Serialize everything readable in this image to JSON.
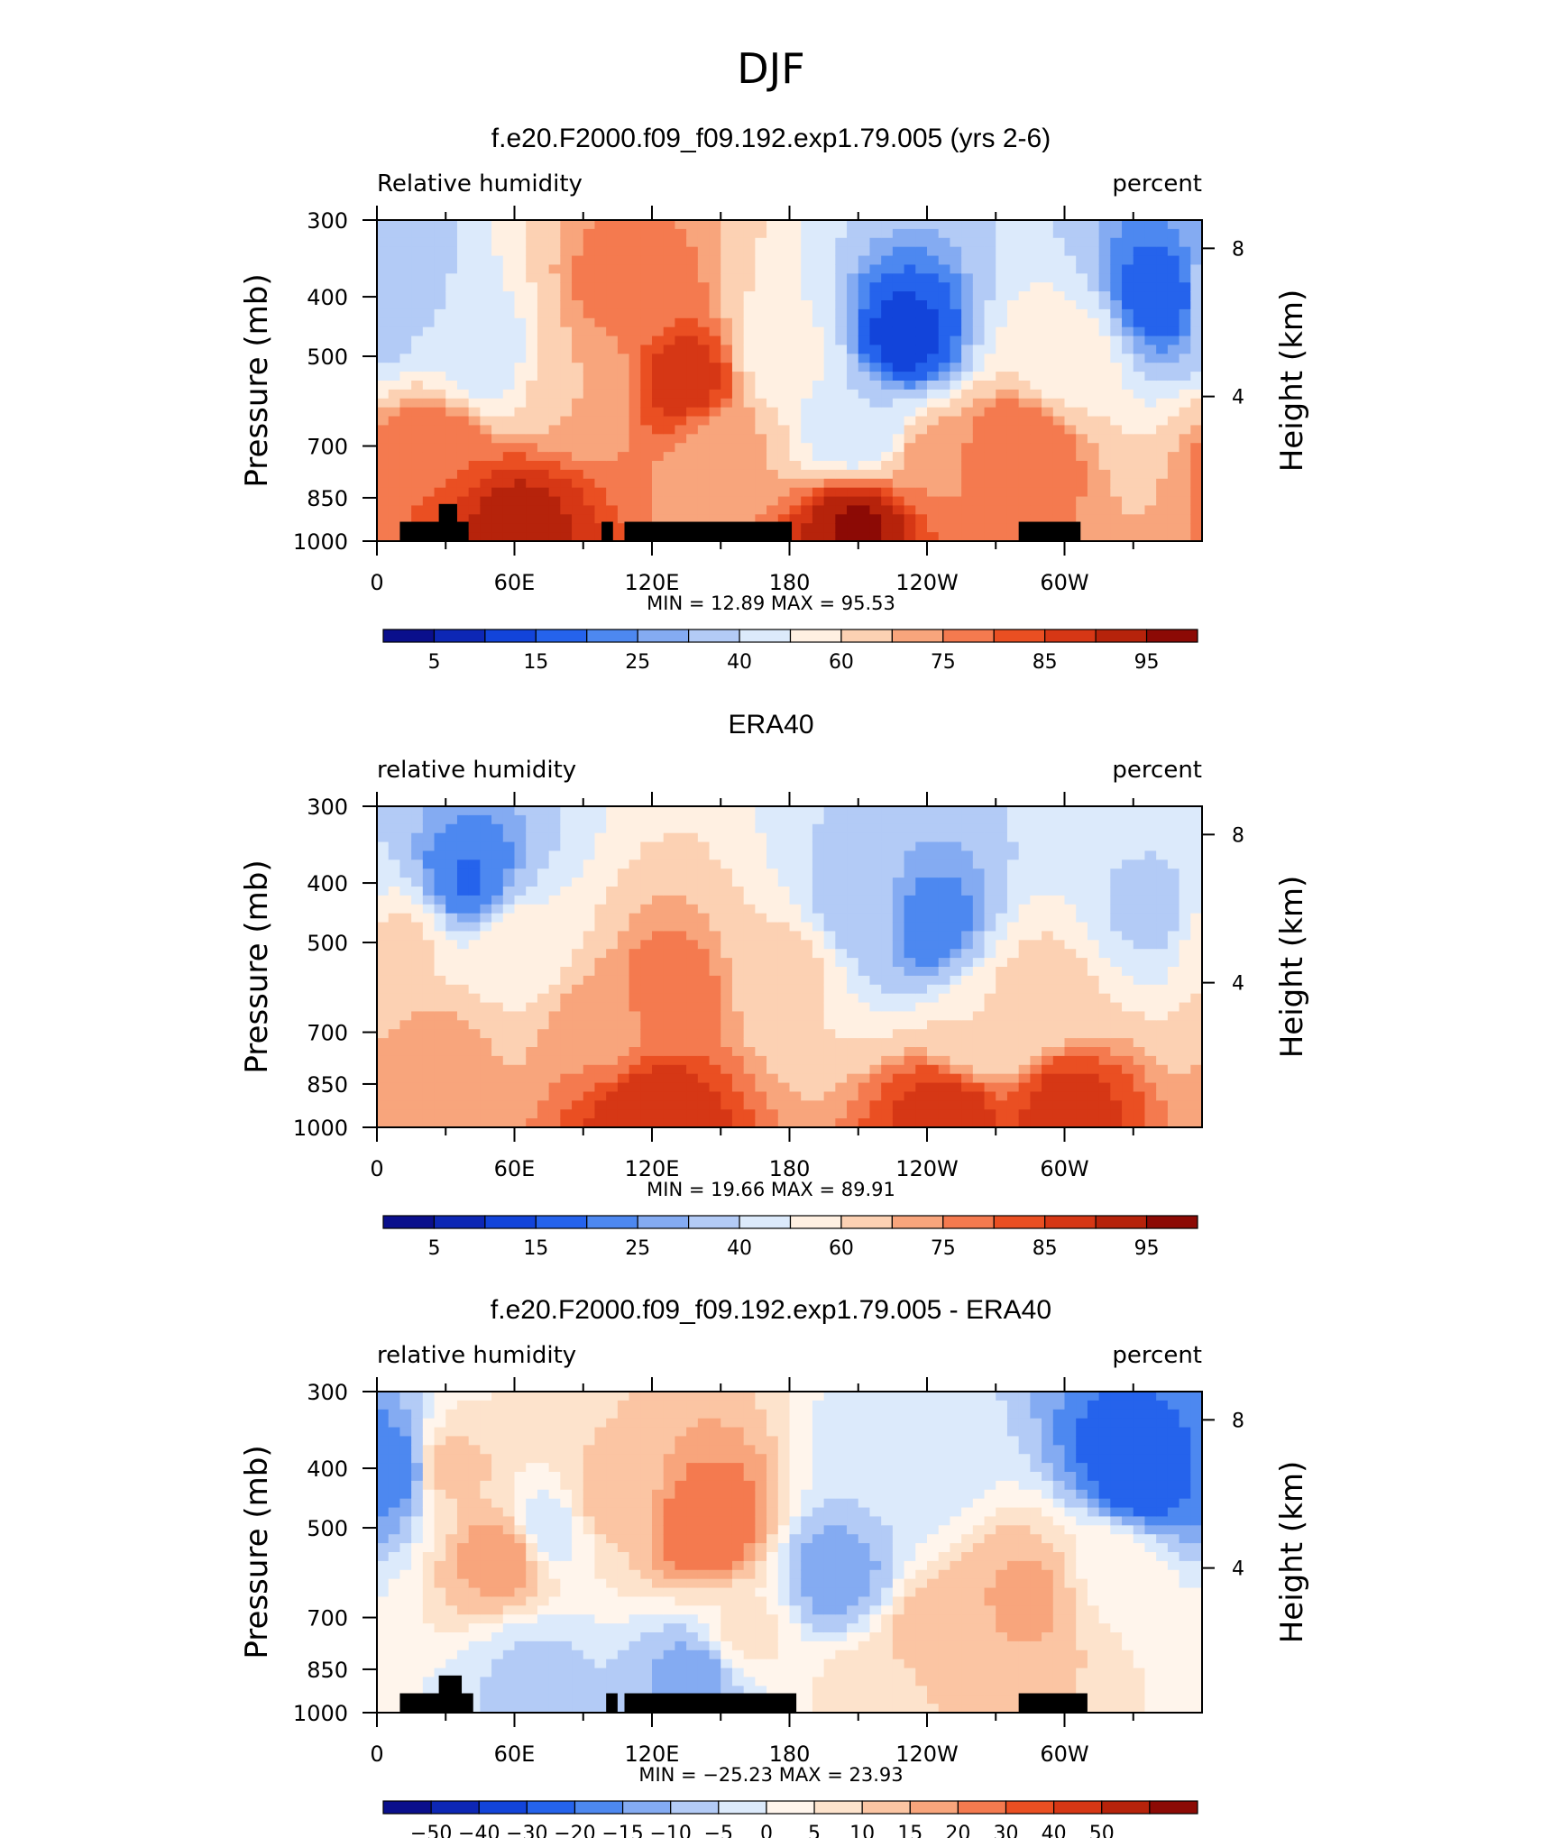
{
  "figure_title": "DJF",
  "colors": {
    "land_mask": "#000000",
    "rh_scale": [
      "#0a0f8c",
      "#0d27b5",
      "#1244da",
      "#2563ec",
      "#4d88f0",
      "#84abf2",
      "#b3cbf6",
      "#dceafb",
      "#fff0e2",
      "#fcd1b3",
      "#f8a57c",
      "#f47a4f",
      "#ea4f22",
      "#d63715",
      "#b6230b",
      "#8c0a05"
    ],
    "diff_scale": [
      "#0a0f8c",
      "#0d27b5",
      "#1244da",
      "#2563ec",
      "#4d88f0",
      "#84abf2",
      "#b3cbf6",
      "#dceafb",
      "#fff5ec",
      "#fde3cc",
      "#fbc5a3",
      "#f8a57c",
      "#f47a4f",
      "#ea4f22",
      "#d63715",
      "#b6230b",
      "#8c0a05"
    ]
  },
  "chart_data": [
    {
      "type": "heatmap",
      "panel_title": "f.e20.F2000.f09_f09.192.exp1.79.005 (yrs 2-6)",
      "variable_label": "Relative humidity",
      "units_label": "percent",
      "ylabel": "Pressure (mb)",
      "y2label": "Height (km)",
      "x_ticks": [
        "0",
        "60E",
        "120E",
        "180",
        "120W",
        "60W"
      ],
      "y_ticks": [
        "300",
        "400",
        "500",
        "700",
        "850",
        "1000"
      ],
      "y2_ticks": [
        "8",
        "4"
      ],
      "stats_text": "MIN =   12.89   MAX =   95.53",
      "min": 12.89,
      "max": 95.53,
      "colorbar_labels": [
        "5",
        "15",
        "25",
        "40",
        "60",
        "75",
        "85",
        "95"
      ],
      "levels": [
        5,
        10,
        15,
        20,
        25,
        30,
        40,
        50,
        60,
        70,
        75,
        80,
        85,
        90,
        95
      ],
      "land_mask": true,
      "field_regions": [
        {
          "lon": 5,
          "p": 400,
          "value": 38
        },
        {
          "lon": 25,
          "p": 700,
          "value": 80
        },
        {
          "lon": 45,
          "p": 500,
          "value": 45
        },
        {
          "lon": 90,
          "p": 550,
          "value": 70
        },
        {
          "lon": 110,
          "p": 400,
          "value": 78
        },
        {
          "lon": 135,
          "p": 550,
          "value": 88
        },
        {
          "lon": 150,
          "p": 700,
          "value": 72
        },
        {
          "lon": 180,
          "p": 500,
          "value": 52
        },
        {
          "lon": 230,
          "p": 470,
          "value": 12.89
        },
        {
          "lon": 210,
          "p": 650,
          "value": 40
        },
        {
          "lon": 245,
          "p": 750,
          "value": 75
        },
        {
          "lon": 280,
          "p": 700,
          "value": 80
        },
        {
          "lon": 300,
          "p": 500,
          "value": 55
        },
        {
          "lon": 345,
          "p": 400,
          "value": 15
        },
        {
          "lon": 210,
          "p": 950,
          "value": 95.53
        },
        {
          "lon": 60,
          "p": 950,
          "value": 92
        }
      ],
      "land_blocks": [
        {
          "lon0": 10,
          "lon1": 40,
          "p_top": 930
        },
        {
          "lon0": 27,
          "lon1": 35,
          "p_top": 870
        },
        {
          "lon0": 98,
          "lon1": 103,
          "p_top": 930
        },
        {
          "lon0": 108,
          "lon1": 181,
          "p_top": 930
        },
        {
          "lon0": 280,
          "lon1": 307,
          "p_top": 930
        }
      ]
    },
    {
      "type": "heatmap",
      "panel_title": "ERA40",
      "variable_label": "relative humidity",
      "units_label": "percent",
      "ylabel": "Pressure (mb)",
      "y2label": "Height (km)",
      "x_ticks": [
        "0",
        "60E",
        "120E",
        "180",
        "120W",
        "60W"
      ],
      "y_ticks": [
        "300",
        "400",
        "500",
        "700",
        "850",
        "1000"
      ],
      "y2_ticks": [
        "8",
        "4"
      ],
      "stats_text": "MIN =   19.66   MAX =   89.91",
      "min": 19.66,
      "max": 89.91,
      "colorbar_labels": [
        "5",
        "15",
        "25",
        "40",
        "60",
        "75",
        "85",
        "95"
      ],
      "levels": [
        5,
        10,
        15,
        20,
        25,
        30,
        40,
        50,
        60,
        70,
        75,
        80,
        85,
        90,
        95
      ],
      "land_mask": false,
      "field_regions": [
        {
          "lon": 10,
          "p": 500,
          "value": 62
        },
        {
          "lon": 25,
          "p": 750,
          "value": 72
        },
        {
          "lon": 40,
          "p": 400,
          "value": 19.66
        },
        {
          "lon": 60,
          "p": 500,
          "value": 55
        },
        {
          "lon": 100,
          "p": 700,
          "value": 74
        },
        {
          "lon": 130,
          "p": 600,
          "value": 77
        },
        {
          "lon": 180,
          "p": 550,
          "value": 63
        },
        {
          "lon": 210,
          "p": 450,
          "value": 35
        },
        {
          "lon": 240,
          "p": 470,
          "value": 22
        },
        {
          "lon": 265,
          "p": 700,
          "value": 60
        },
        {
          "lon": 290,
          "p": 600,
          "value": 63
        },
        {
          "lon": 340,
          "p": 450,
          "value": 38
        },
        {
          "lon": 120,
          "p": 950,
          "value": 89.91
        },
        {
          "lon": 250,
          "p": 950,
          "value": 88
        },
        {
          "lon": 300,
          "p": 930,
          "value": 87
        }
      ]
    },
    {
      "type": "heatmap",
      "panel_title": "f.e20.F2000.f09_f09.192.exp1.79.005 - ERA40",
      "variable_label": "relative humidity",
      "units_label": "percent",
      "ylabel": "Pressure (mb)",
      "y2label": "Height (km)",
      "x_ticks": [
        "0",
        "60E",
        "120E",
        "180",
        "120W",
        "60W"
      ],
      "y_ticks": [
        "300",
        "400",
        "500",
        "700",
        "850",
        "1000"
      ],
      "y2_ticks": [
        "8",
        "4"
      ],
      "stats_text": "MIN =  −25.23   MAX =   23.93",
      "min": -25.23,
      "max": 23.93,
      "colorbar_labels": [
        "−50",
        "−40",
        "−30",
        "−20",
        "−15",
        "−10",
        "−5",
        "0",
        "5",
        "10",
        "15",
        "20",
        "30",
        "40",
        "50"
      ],
      "levels": [
        -50,
        -40,
        -30,
        -20,
        -15,
        -10,
        -5,
        0,
        5,
        10,
        15,
        20,
        30,
        40,
        50
      ],
      "land_mask": true,
      "field_regions": [
        {
          "lon": 8,
          "p": 400,
          "value": -20
        },
        {
          "lon": 30,
          "p": 400,
          "value": 12
        },
        {
          "lon": 55,
          "p": 550,
          "value": 18
        },
        {
          "lon": 75,
          "p": 500,
          "value": -3
        },
        {
          "lon": 100,
          "p": 450,
          "value": 12
        },
        {
          "lon": 145,
          "p": 500,
          "value": 23.93
        },
        {
          "lon": 160,
          "p": 750,
          "value": 6
        },
        {
          "lon": 200,
          "p": 600,
          "value": -12
        },
        {
          "lon": 230,
          "p": 400,
          "value": -4
        },
        {
          "lon": 245,
          "p": 750,
          "value": 13
        },
        {
          "lon": 285,
          "p": 650,
          "value": 16
        },
        {
          "lon": 320,
          "p": 600,
          "value": 4
        },
        {
          "lon": 335,
          "p": 400,
          "value": -25.23
        },
        {
          "lon": 70,
          "p": 870,
          "value": -6
        },
        {
          "lon": 140,
          "p": 870,
          "value": -12
        },
        {
          "lon": 220,
          "p": 920,
          "value": 9
        }
      ],
      "land_blocks": [
        {
          "lon0": 10,
          "lon1": 42,
          "p_top": 930
        },
        {
          "lon0": 27,
          "lon1": 37,
          "p_top": 870
        },
        {
          "lon0": 100,
          "lon1": 105,
          "p_top": 930
        },
        {
          "lon0": 108,
          "lon1": 183,
          "p_top": 930
        },
        {
          "lon0": 280,
          "lon1": 310,
          "p_top": 930
        }
      ]
    }
  ]
}
